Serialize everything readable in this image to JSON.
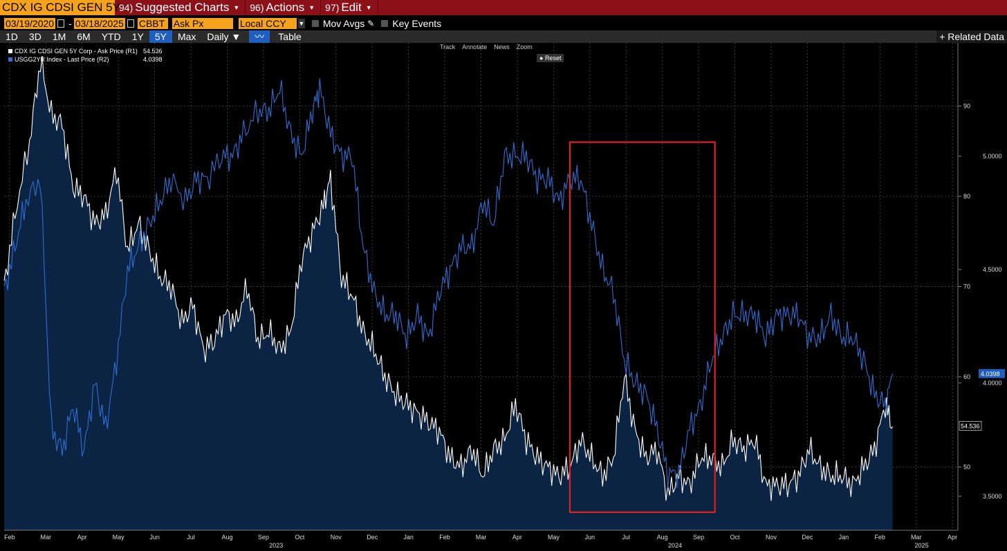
{
  "header": {
    "ticker": "CDX IG CDSI GEN 5Y",
    "menus": [
      {
        "num": "94)",
        "label": "Suggested Charts"
      },
      {
        "num": "96)",
        "label": "Actions"
      },
      {
        "num": "97)",
        "label": "Edit"
      }
    ]
  },
  "controls": {
    "start_date": "03/19/2020",
    "end_date": "03/18/2025",
    "source": "CBBT",
    "field": "Ask Px",
    "currency": "Local CCY",
    "mov_avgs": "Mov Avgs",
    "key_events": "Key Events"
  },
  "ranges": [
    "1D",
    "3D",
    "1M",
    "6M",
    "YTD",
    "1Y",
    "5Y",
    "Max"
  ],
  "active_range": "5Y",
  "frequency": "Daily",
  "table_label": "Table",
  "related_label": "+ Related Data",
  "tools": [
    "Track",
    "Annotate",
    "News",
    "Zoom"
  ],
  "reset_label": "Reset",
  "colors": {
    "cdx": "#ffffff",
    "ust": "#2f6fd6",
    "fill": "#0b2444",
    "highlight": "#e0201e"
  },
  "chart_data": {
    "type": "line",
    "title": "",
    "series": [
      {
        "name": "CDX IG CDSI GEN 5Y Corp - Ask Price (R1)",
        "last": "54.536",
        "axis": "R1",
        "points": [
          [
            0,
            70
          ],
          [
            0.3,
            78
          ],
          [
            0.7,
            86
          ],
          [
            1,
            95
          ],
          [
            1.3,
            89
          ],
          [
            1.6,
            88
          ],
          [
            1.9,
            81
          ],
          [
            2.2,
            80
          ],
          [
            2.5,
            77
          ],
          [
            2.8,
            78
          ],
          [
            3.1,
            83
          ],
          [
            3.4,
            74
          ],
          [
            3.7,
            77
          ],
          [
            4,
            74
          ],
          [
            4.3,
            71
          ],
          [
            4.6,
            70
          ],
          [
            4.9,
            66
          ],
          [
            5.2,
            68
          ],
          [
            5.5,
            63
          ],
          [
            5.8,
            64
          ],
          [
            6.1,
            67
          ],
          [
            6.4,
            66
          ],
          [
            6.7,
            70
          ],
          [
            7,
            64
          ],
          [
            7.3,
            65
          ],
          [
            7.6,
            63
          ],
          [
            7.9,
            65
          ],
          [
            8.2,
            73
          ],
          [
            8.5,
            76
          ],
          [
            8.8,
            79
          ],
          [
            9,
            82
          ],
          [
            9.3,
            71
          ],
          [
            9.6,
            69
          ],
          [
            9.9,
            65
          ],
          [
            10.2,
            63
          ],
          [
            10.5,
            60
          ],
          [
            10.8,
            58
          ],
          [
            11.1,
            57
          ],
          [
            11.4,
            56
          ],
          [
            11.7,
            55
          ],
          [
            12,
            54
          ],
          [
            12.3,
            51
          ],
          [
            12.6,
            50
          ],
          [
            12.9,
            52
          ],
          [
            13.2,
            49
          ],
          [
            13.5,
            52
          ],
          [
            13.8,
            53
          ],
          [
            14.1,
            57
          ],
          [
            14.4,
            53
          ],
          [
            14.7,
            51
          ],
          [
            15,
            50
          ],
          [
            15.3,
            49
          ],
          [
            15.6,
            50
          ],
          [
            15.9,
            53
          ],
          [
            16.2,
            51
          ],
          [
            16.5,
            49
          ],
          [
            16.8,
            51
          ],
          [
            17.1,
            60
          ],
          [
            17.4,
            54
          ],
          [
            17.7,
            51
          ],
          [
            18,
            52
          ],
          [
            18.3,
            47
          ],
          [
            18.6,
            49
          ],
          [
            18.9,
            48
          ],
          [
            19.2,
            51
          ],
          [
            19.5,
            51
          ],
          [
            19.8,
            50
          ],
          [
            20.1,
            53
          ],
          [
            20.4,
            52
          ],
          [
            20.7,
            53
          ],
          [
            21,
            48
          ],
          [
            21.3,
            48
          ],
          [
            21.6,
            48
          ],
          [
            21.9,
            49
          ],
          [
            22.2,
            52
          ],
          [
            22.5,
            50
          ],
          [
            22.8,
            49
          ],
          [
            23.1,
            49
          ],
          [
            23.4,
            48
          ],
          [
            23.7,
            50
          ],
          [
            24,
            52
          ],
          [
            24.3,
            57
          ],
          [
            24.5,
            54.5
          ]
        ]
      },
      {
        "name": "USGG2YR Index - Last Price (R2)",
        "last": "4.0398",
        "axis": "R2",
        "points": [
          [
            0,
            4.4
          ],
          [
            0.3,
            4.6
          ],
          [
            0.6,
            4.8
          ],
          [
            1,
            4.9
          ],
          [
            1.3,
            3.8
          ],
          [
            1.6,
            3.7
          ],
          [
            1.9,
            3.9
          ],
          [
            2.2,
            3.7
          ],
          [
            2.5,
            4.0
          ],
          [
            2.8,
            3.8
          ],
          [
            3.1,
            4.1
          ],
          [
            3.4,
            4.5
          ],
          [
            3.7,
            4.6
          ],
          [
            4,
            4.7
          ],
          [
            4.3,
            4.8
          ],
          [
            4.6,
            4.9
          ],
          [
            5,
            4.8
          ],
          [
            5.3,
            4.9
          ],
          [
            5.6,
            4.9
          ],
          [
            6,
            5.0
          ],
          [
            6.3,
            5.0
          ],
          [
            6.6,
            5.1
          ],
          [
            7,
            5.2
          ],
          [
            7.3,
            5.2
          ],
          [
            7.6,
            5.3
          ],
          [
            7.9,
            5.1
          ],
          [
            8.2,
            5.0
          ],
          [
            8.5,
            5.2
          ],
          [
            8.7,
            5.3
          ],
          [
            9,
            5.1
          ],
          [
            9.3,
            5.0
          ],
          [
            9.6,
            5.0
          ],
          [
            9.9,
            4.6
          ],
          [
            10.2,
            4.4
          ],
          [
            10.5,
            4.3
          ],
          [
            10.8,
            4.3
          ],
          [
            11.1,
            4.2
          ],
          [
            11.4,
            4.3
          ],
          [
            11.7,
            4.2
          ],
          [
            12,
            4.4
          ],
          [
            12.3,
            4.5
          ],
          [
            12.6,
            4.6
          ],
          [
            12.9,
            4.6
          ],
          [
            13.2,
            4.8
          ],
          [
            13.5,
            4.7
          ],
          [
            13.8,
            5.0
          ],
          [
            14.1,
            5.0
          ],
          [
            14.4,
            5.0
          ],
          [
            14.7,
            4.9
          ],
          [
            15,
            4.9
          ],
          [
            15.3,
            4.8
          ],
          [
            15.6,
            4.9
          ],
          [
            15.9,
            4.9
          ],
          [
            16.2,
            4.7
          ],
          [
            16.5,
            4.5
          ],
          [
            16.8,
            4.4
          ],
          [
            17.1,
            4.1
          ],
          [
            17.4,
            4.0
          ],
          [
            17.7,
            3.95
          ],
          [
            18,
            3.8
          ],
          [
            18.3,
            3.6
          ],
          [
            18.6,
            3.6
          ],
          [
            18.9,
            3.8
          ],
          [
            19.2,
            3.9
          ],
          [
            19.5,
            4.1
          ],
          [
            19.8,
            4.2
          ],
          [
            20.1,
            4.3
          ],
          [
            20.4,
            4.3
          ],
          [
            20.7,
            4.3
          ],
          [
            21,
            4.2
          ],
          [
            21.3,
            4.3
          ],
          [
            21.6,
            4.3
          ],
          [
            21.9,
            4.3
          ],
          [
            22.2,
            4.2
          ],
          [
            22.5,
            4.2
          ],
          [
            22.8,
            4.3
          ],
          [
            23.1,
            4.2
          ],
          [
            23.4,
            4.2
          ],
          [
            23.7,
            4.1
          ],
          [
            24,
            3.95
          ],
          [
            24.3,
            3.9
          ],
          [
            24.5,
            4.04
          ]
        ]
      }
    ],
    "r1_axis": {
      "range": [
        43,
        97
      ],
      "ticks": [
        "90",
        "80",
        "70",
        "60",
        "50"
      ]
    },
    "r2_axis": {
      "range": [
        3.35,
        5.5
      ],
      "ticks": [
        "5.0000",
        "4.5000",
        "4.0000",
        "3.5000"
      ]
    },
    "x_ticks": [
      "Feb",
      "Mar",
      "Apr",
      "May",
      "Jun",
      "Jul",
      "Aug",
      "Sep",
      "Oct",
      "Nov",
      "Dec",
      "Jan",
      "Feb",
      "Mar",
      "Apr",
      "May",
      "Jun",
      "Jul",
      "Aug",
      "Sep",
      "Oct",
      "Nov",
      "Dec",
      "Jan",
      "Feb",
      "Mar",
      "Apr"
    ],
    "year_labels": [
      "2023",
      "2024",
      "2025"
    ],
    "last_labels": {
      "r1": "54.536",
      "r2": "4.0398"
    },
    "highlight": {
      "from_month": 15.6,
      "to_month": 19.6,
      "r1_top": 86,
      "r1_bottom": 45
    }
  }
}
